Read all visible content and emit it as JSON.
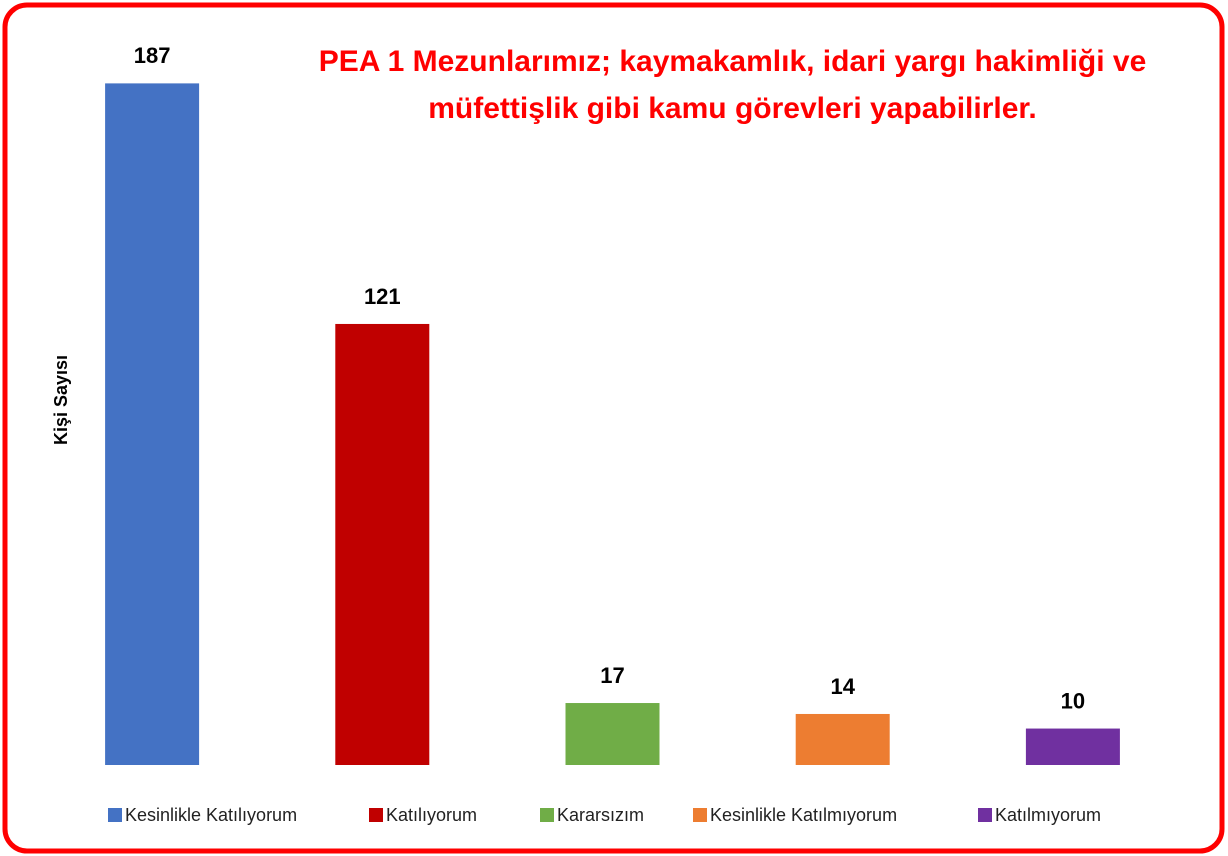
{
  "chart_data": {
    "type": "bar",
    "title": "PEA 1 Mezunlarımız; kaymakamlık, idari yargı hakimliği ve müfettişlik gibi kamu görevleri yapabilirler.",
    "y_label": "Kişi Sayısı",
    "series": [
      {
        "name": "Kesinlikle Katılıyorum",
        "color": "#4472c4",
        "values": [
          187
        ]
      },
      {
        "name": "Katılıyorum",
        "color": "#c00000",
        "values": [
          121
        ]
      },
      {
        "name": "Kararsızım",
        "color": "#70ad47",
        "values": [
          17
        ]
      },
      {
        "name": "Kesinlikle Katılmıyorum",
        "color": "#ed7d31",
        "values": [
          14
        ]
      },
      {
        "name": "Katılmıyorum",
        "color": "#7030a0",
        "values": [
          10
        ]
      }
    ],
    "ylim": [
      0,
      200
    ],
    "legend": "bottom"
  }
}
